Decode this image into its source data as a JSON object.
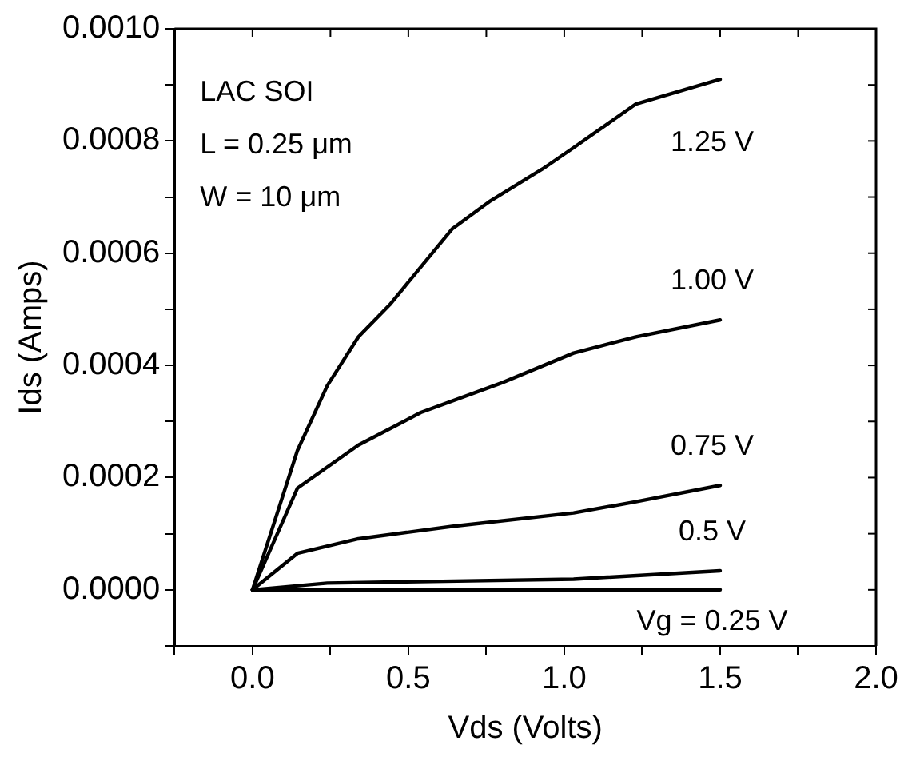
{
  "chart_data": {
    "type": "line",
    "xlabel": "Vds (Volts)",
    "ylabel": "Ids (Amps)",
    "xlim": [
      -0.25,
      2.0
    ],
    "xticks": [
      {
        "value": -0.25,
        "label": null
      },
      {
        "value": 0,
        "label": "0.0"
      },
      {
        "value": 0.25,
        "label": null
      },
      0.5,
      {
        "value": 0.75,
        "label": null
      },
      {
        "value": 1,
        "label": "1.0"
      },
      {
        "value": 1.25,
        "label": null
      },
      1.5,
      {
        "value": 1.75,
        "label": null
      },
      {
        "value": 2,
        "label": "2.0"
      }
    ],
    "ylim": [
      -0.0001,
      0.001
    ],
    "yticks": [
      {
        "value": -0.0001,
        "label": null
      },
      {
        "value": 0,
        "label": "0.0000"
      },
      {
        "value": 0.0001,
        "label": null
      },
      {
        "value": 0.0002,
        "label": "0.0002"
      },
      {
        "value": 0.0003,
        "label": null
      },
      {
        "value": 0.0004,
        "label": "0.0004"
      },
      {
        "value": 0.0005,
        "label": null
      },
      {
        "value": 0.0006,
        "label": "0.0006"
      },
      {
        "value": 0.0007,
        "label": null
      },
      {
        "value": 0.0008,
        "label": "0.0008"
      },
      {
        "value": 0.0009,
        "label": null
      },
      {
        "value": 0.001,
        "label": "0.0010"
      }
    ],
    "grid": false,
    "legend": false,
    "marker": "none",
    "line_style": "solid",
    "series": [
      {
        "name": "1.25 V",
        "color": "#000000",
        "x": [
          0,
          0.144,
          0.24,
          0.34,
          0.44,
          0.64,
          0.76,
          0.93,
          1.03,
          1.23,
          1.5
        ],
        "values": [
          0,
          0.000248,
          0.000364,
          0.000451,
          0.000508,
          0.000643,
          0.000692,
          0.00075,
          0.000788,
          0.000866,
          0.00091
        ]
      },
      {
        "name": "1.00 V",
        "color": "#000000",
        "x": [
          0,
          0.144,
          0.34,
          0.54,
          0.8,
          1.03,
          1.23,
          1.5
        ],
        "values": [
          0,
          0.000181,
          0.000258,
          0.000316,
          0.000369,
          0.000422,
          0.000451,
          0.000481
        ]
      },
      {
        "name": "0.75 V",
        "color": "#000000",
        "x": [
          0,
          0.144,
          0.34,
          0.64,
          1.03,
          1.23,
          1.5
        ],
        "values": [
          0,
          6.5e-05,
          9.1e-05,
          0.000113,
          0.000137,
          0.000157,
          0.000186
        ]
      },
      {
        "name": "0.5 V",
        "color": "#000000",
        "x": [
          0,
          0.24,
          1.03,
          1.5
        ],
        "values": [
          0,
          1.2e-05,
          1.9e-05,
          3.4e-05
        ]
      },
      {
        "name": "Vg = 0.25 V",
        "color": "#000000",
        "x": [
          0,
          1.5
        ],
        "values": [
          0,
          0
        ]
      }
    ],
    "annotations": [
      "LAC SOI",
      "L = 0.25 μm",
      "W = 10 μm"
    ]
  }
}
